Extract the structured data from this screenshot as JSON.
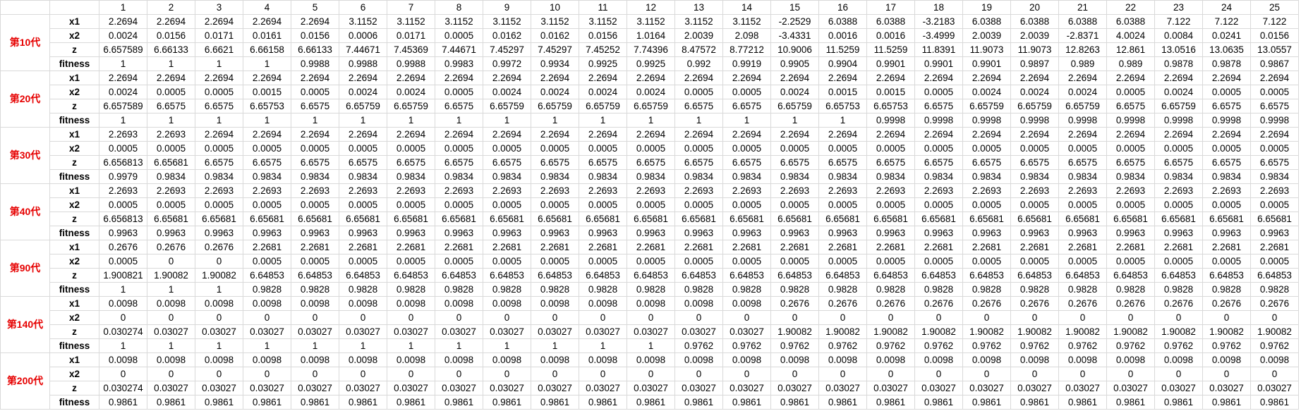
{
  "columns": [
    "1",
    "2",
    "3",
    "4",
    "5",
    "6",
    "7",
    "8",
    "9",
    "10",
    "11",
    "12",
    "13",
    "14",
    "15",
    "16",
    "17",
    "18",
    "19",
    "20",
    "21",
    "22",
    "23",
    "24",
    "25"
  ],
  "groups": [
    {
      "label": "第10代",
      "rows": [
        {
          "var": "x1",
          "values": [
            "2.2694",
            "2.2694",
            "2.2694",
            "2.2694",
            "2.2694",
            "3.1152",
            "3.1152",
            "3.1152",
            "3.1152",
            "3.1152",
            "3.1152",
            "3.1152",
            "3.1152",
            "3.1152",
            "-2.2529",
            "6.0388",
            "6.0388",
            "-3.2183",
            "6.0388",
            "6.0388",
            "6.0388",
            "6.0388",
            "7.122",
            "7.122",
            "7.122"
          ]
        },
        {
          "var": "x2",
          "values": [
            "0.0024",
            "0.0156",
            "0.0171",
            "0.0161",
            "0.0156",
            "0.0006",
            "0.0171",
            "0.0005",
            "0.0162",
            "0.0162",
            "0.0156",
            "1.0164",
            "2.0039",
            "2.098",
            "-3.4331",
            "0.0016",
            "0.0016",
            "-3.4999",
            "2.0039",
            "2.0039",
            "-2.8371",
            "4.0024",
            "0.0084",
            "0.0241",
            "0.0156"
          ]
        },
        {
          "var": "z",
          "values": [
            "6.657589",
            "6.66133",
            "6.6621",
            "6.66158",
            "6.66133",
            "7.44671",
            "7.45369",
            "7.44671",
            "7.45297",
            "7.45297",
            "7.45252",
            "7.74396",
            "8.47572",
            "8.77212",
            "10.9006",
            "11.5259",
            "11.5259",
            "11.8391",
            "11.9073",
            "11.9073",
            "12.8263",
            "12.861",
            "13.0516",
            "13.0635",
            "13.0557"
          ]
        },
        {
          "var": "fitness",
          "values": [
            "1",
            "1",
            "1",
            "1",
            "0.9988",
            "0.9988",
            "0.9988",
            "0.9983",
            "0.9972",
            "0.9934",
            "0.9925",
            "0.9925",
            "0.992",
            "0.9919",
            "0.9905",
            "0.9904",
            "0.9901",
            "0.9901",
            "0.9901",
            "0.9897",
            "0.989",
            "0.989",
            "0.9878",
            "0.9878",
            "0.9867"
          ]
        }
      ]
    },
    {
      "label": "第20代",
      "rows": [
        {
          "var": "x1",
          "values": [
            "2.2694",
            "2.2694",
            "2.2694",
            "2.2694",
            "2.2694",
            "2.2694",
            "2.2694",
            "2.2694",
            "2.2694",
            "2.2694",
            "2.2694",
            "2.2694",
            "2.2694",
            "2.2694",
            "2.2694",
            "2.2694",
            "2.2694",
            "2.2694",
            "2.2694",
            "2.2694",
            "2.2694",
            "2.2694",
            "2.2694",
            "2.2694",
            "2.2694"
          ]
        },
        {
          "var": "x2",
          "values": [
            "0.0024",
            "0.0005",
            "0.0005",
            "0.0015",
            "0.0005",
            "0.0024",
            "0.0024",
            "0.0005",
            "0.0024",
            "0.0024",
            "0.0024",
            "0.0024",
            "0.0005",
            "0.0005",
            "0.0024",
            "0.0015",
            "0.0015",
            "0.0005",
            "0.0024",
            "0.0024",
            "0.0024",
            "0.0005",
            "0.0024",
            "0.0005",
            "0.0005"
          ]
        },
        {
          "var": "z",
          "values": [
            "6.657589",
            "6.6575",
            "6.6575",
            "6.65753",
            "6.6575",
            "6.65759",
            "6.65759",
            "6.6575",
            "6.65759",
            "6.65759",
            "6.65759",
            "6.65759",
            "6.6575",
            "6.6575",
            "6.65759",
            "6.65753",
            "6.65753",
            "6.6575",
            "6.65759",
            "6.65759",
            "6.65759",
            "6.6575",
            "6.65759",
            "6.6575",
            "6.6575"
          ]
        },
        {
          "var": "fitness",
          "values": [
            "1",
            "1",
            "1",
            "1",
            "1",
            "1",
            "1",
            "1",
            "1",
            "1",
            "1",
            "1",
            "1",
            "1",
            "1",
            "1",
            "0.9998",
            "0.9998",
            "0.9998",
            "0.9998",
            "0.9998",
            "0.9998",
            "0.9998",
            "0.9998",
            "0.9998"
          ]
        }
      ]
    },
    {
      "label": "第30代",
      "rows": [
        {
          "var": "x1",
          "values": [
            "2.2693",
            "2.2693",
            "2.2694",
            "2.2694",
            "2.2694",
            "2.2694",
            "2.2694",
            "2.2694",
            "2.2694",
            "2.2694",
            "2.2694",
            "2.2694",
            "2.2694",
            "2.2694",
            "2.2694",
            "2.2694",
            "2.2694",
            "2.2694",
            "2.2694",
            "2.2694",
            "2.2694",
            "2.2694",
            "2.2694",
            "2.2694",
            "2.2694"
          ]
        },
        {
          "var": "x2",
          "values": [
            "0.0005",
            "0.0005",
            "0.0005",
            "0.0005",
            "0.0005",
            "0.0005",
            "0.0005",
            "0.0005",
            "0.0005",
            "0.0005",
            "0.0005",
            "0.0005",
            "0.0005",
            "0.0005",
            "0.0005",
            "0.0005",
            "0.0005",
            "0.0005",
            "0.0005",
            "0.0005",
            "0.0005",
            "0.0005",
            "0.0005",
            "0.0005",
            "0.0005"
          ]
        },
        {
          "var": "z",
          "values": [
            "6.656813",
            "6.65681",
            "6.6575",
            "6.6575",
            "6.6575",
            "6.6575",
            "6.6575",
            "6.6575",
            "6.6575",
            "6.6575",
            "6.6575",
            "6.6575",
            "6.6575",
            "6.6575",
            "6.6575",
            "6.6575",
            "6.6575",
            "6.6575",
            "6.6575",
            "6.6575",
            "6.6575",
            "6.6575",
            "6.6575",
            "6.6575",
            "6.6575"
          ]
        },
        {
          "var": "fitness",
          "values": [
            "0.9979",
            "0.9834",
            "0.9834",
            "0.9834",
            "0.9834",
            "0.9834",
            "0.9834",
            "0.9834",
            "0.9834",
            "0.9834",
            "0.9834",
            "0.9834",
            "0.9834",
            "0.9834",
            "0.9834",
            "0.9834",
            "0.9834",
            "0.9834",
            "0.9834",
            "0.9834",
            "0.9834",
            "0.9834",
            "0.9834",
            "0.9834",
            "0.9834"
          ]
        }
      ]
    },
    {
      "label": "第40代",
      "rows": [
        {
          "var": "x1",
          "values": [
            "2.2693",
            "2.2693",
            "2.2693",
            "2.2693",
            "2.2693",
            "2.2693",
            "2.2693",
            "2.2693",
            "2.2693",
            "2.2693",
            "2.2693",
            "2.2693",
            "2.2693",
            "2.2693",
            "2.2693",
            "2.2693",
            "2.2693",
            "2.2693",
            "2.2693",
            "2.2693",
            "2.2693",
            "2.2693",
            "2.2693",
            "2.2693",
            "2.2693"
          ]
        },
        {
          "var": "x2",
          "values": [
            "0.0005",
            "0.0005",
            "0.0005",
            "0.0005",
            "0.0005",
            "0.0005",
            "0.0005",
            "0.0005",
            "0.0005",
            "0.0005",
            "0.0005",
            "0.0005",
            "0.0005",
            "0.0005",
            "0.0005",
            "0.0005",
            "0.0005",
            "0.0005",
            "0.0005",
            "0.0005",
            "0.0005",
            "0.0005",
            "0.0005",
            "0.0005",
            "0.0005"
          ]
        },
        {
          "var": "z",
          "values": [
            "6.656813",
            "6.65681",
            "6.65681",
            "6.65681",
            "6.65681",
            "6.65681",
            "6.65681",
            "6.65681",
            "6.65681",
            "6.65681",
            "6.65681",
            "6.65681",
            "6.65681",
            "6.65681",
            "6.65681",
            "6.65681",
            "6.65681",
            "6.65681",
            "6.65681",
            "6.65681",
            "6.65681",
            "6.65681",
            "6.65681",
            "6.65681",
            "6.65681"
          ]
        },
        {
          "var": "fitness",
          "values": [
            "0.9963",
            "0.9963",
            "0.9963",
            "0.9963",
            "0.9963",
            "0.9963",
            "0.9963",
            "0.9963",
            "0.9963",
            "0.9963",
            "0.9963",
            "0.9963",
            "0.9963",
            "0.9963",
            "0.9963",
            "0.9963",
            "0.9963",
            "0.9963",
            "0.9963",
            "0.9963",
            "0.9963",
            "0.9963",
            "0.9963",
            "0.9963",
            "0.9963"
          ]
        }
      ]
    },
    {
      "label": "第90代",
      "rows": [
        {
          "var": "x1",
          "values": [
            "0.2676",
            "0.2676",
            "0.2676",
            "2.2681",
            "2.2681",
            "2.2681",
            "2.2681",
            "2.2681",
            "2.2681",
            "2.2681",
            "2.2681",
            "2.2681",
            "2.2681",
            "2.2681",
            "2.2681",
            "2.2681",
            "2.2681",
            "2.2681",
            "2.2681",
            "2.2681",
            "2.2681",
            "2.2681",
            "2.2681",
            "2.2681",
            "2.2681"
          ]
        },
        {
          "var": "x2",
          "values": [
            "0.0005",
            "0",
            "0",
            "0.0005",
            "0.0005",
            "0.0005",
            "0.0005",
            "0.0005",
            "0.0005",
            "0.0005",
            "0.0005",
            "0.0005",
            "0.0005",
            "0.0005",
            "0.0005",
            "0.0005",
            "0.0005",
            "0.0005",
            "0.0005",
            "0.0005",
            "0.0005",
            "0.0005",
            "0.0005",
            "0.0005",
            "0.0005"
          ]
        },
        {
          "var": "z",
          "values": [
            "1.900821",
            "1.90082",
            "1.90082",
            "6.64853",
            "6.64853",
            "6.64853",
            "6.64853",
            "6.64853",
            "6.64853",
            "6.64853",
            "6.64853",
            "6.64853",
            "6.64853",
            "6.64853",
            "6.64853",
            "6.64853",
            "6.64853",
            "6.64853",
            "6.64853",
            "6.64853",
            "6.64853",
            "6.64853",
            "6.64853",
            "6.64853",
            "6.64853"
          ]
        },
        {
          "var": "fitness",
          "values": [
            "1",
            "1",
            "1",
            "0.9828",
            "0.9828",
            "0.9828",
            "0.9828",
            "0.9828",
            "0.9828",
            "0.9828",
            "0.9828",
            "0.9828",
            "0.9828",
            "0.9828",
            "0.9828",
            "0.9828",
            "0.9828",
            "0.9828",
            "0.9828",
            "0.9828",
            "0.9828",
            "0.9828",
            "0.9828",
            "0.9828",
            "0.9828"
          ]
        }
      ]
    },
    {
      "label": "第140代",
      "rows": [
        {
          "var": "x1",
          "values": [
            "0.0098",
            "0.0098",
            "0.0098",
            "0.0098",
            "0.0098",
            "0.0098",
            "0.0098",
            "0.0098",
            "0.0098",
            "0.0098",
            "0.0098",
            "0.0098",
            "0.0098",
            "0.0098",
            "0.2676",
            "0.2676",
            "0.2676",
            "0.2676",
            "0.2676",
            "0.2676",
            "0.2676",
            "0.2676",
            "0.2676",
            "0.2676",
            "0.2676"
          ]
        },
        {
          "var": "x2",
          "values": [
            "0",
            "0",
            "0",
            "0",
            "0",
            "0",
            "0",
            "0",
            "0",
            "0",
            "0",
            "0",
            "0",
            "0",
            "0",
            "0",
            "0",
            "0",
            "0",
            "0",
            "0",
            "0",
            "0",
            "0",
            "0"
          ]
        },
        {
          "var": "z",
          "values": [
            "0.030274",
            "0.03027",
            "0.03027",
            "0.03027",
            "0.03027",
            "0.03027",
            "0.03027",
            "0.03027",
            "0.03027",
            "0.03027",
            "0.03027",
            "0.03027",
            "0.03027",
            "0.03027",
            "1.90082",
            "1.90082",
            "1.90082",
            "1.90082",
            "1.90082",
            "1.90082",
            "1.90082",
            "1.90082",
            "1.90082",
            "1.90082",
            "1.90082"
          ]
        },
        {
          "var": "fitness",
          "values": [
            "1",
            "1",
            "1",
            "1",
            "1",
            "1",
            "1",
            "1",
            "1",
            "1",
            "1",
            "1",
            "0.9762",
            "0.9762",
            "0.9762",
            "0.9762",
            "0.9762",
            "0.9762",
            "0.9762",
            "0.9762",
            "0.9762",
            "0.9762",
            "0.9762",
            "0.9762",
            "0.9762"
          ]
        }
      ]
    },
    {
      "label": "第200代",
      "rows": [
        {
          "var": "x1",
          "values": [
            "0.0098",
            "0.0098",
            "0.0098",
            "0.0098",
            "0.0098",
            "0.0098",
            "0.0098",
            "0.0098",
            "0.0098",
            "0.0098",
            "0.0098",
            "0.0098",
            "0.0098",
            "0.0098",
            "0.0098",
            "0.0098",
            "0.0098",
            "0.0098",
            "0.0098",
            "0.0098",
            "0.0098",
            "0.0098",
            "0.0098",
            "0.0098",
            "0.0098"
          ]
        },
        {
          "var": "x2",
          "values": [
            "0",
            "0",
            "0",
            "0",
            "0",
            "0",
            "0",
            "0",
            "0",
            "0",
            "0",
            "0",
            "0",
            "0",
            "0",
            "0",
            "0",
            "0",
            "0",
            "0",
            "0",
            "0",
            "0",
            "0",
            "0"
          ]
        },
        {
          "var": "z",
          "values": [
            "0.030274",
            "0.03027",
            "0.03027",
            "0.03027",
            "0.03027",
            "0.03027",
            "0.03027",
            "0.03027",
            "0.03027",
            "0.03027",
            "0.03027",
            "0.03027",
            "0.03027",
            "0.03027",
            "0.03027",
            "0.03027",
            "0.03027",
            "0.03027",
            "0.03027",
            "0.03027",
            "0.03027",
            "0.03027",
            "0.03027",
            "0.03027",
            "0.03027"
          ]
        },
        {
          "var": "fitness",
          "values": [
            "0.9861",
            "0.9861",
            "0.9861",
            "0.9861",
            "0.9861",
            "0.9861",
            "0.9861",
            "0.9861",
            "0.9861",
            "0.9861",
            "0.9861",
            "0.9861",
            "0.9861",
            "0.9861",
            "0.9861",
            "0.9861",
            "0.9861",
            "0.9861",
            "0.9861",
            "0.9861",
            "0.9861",
            "0.9861",
            "0.9861",
            "0.9861",
            "0.9861"
          ]
        }
      ]
    }
  ]
}
